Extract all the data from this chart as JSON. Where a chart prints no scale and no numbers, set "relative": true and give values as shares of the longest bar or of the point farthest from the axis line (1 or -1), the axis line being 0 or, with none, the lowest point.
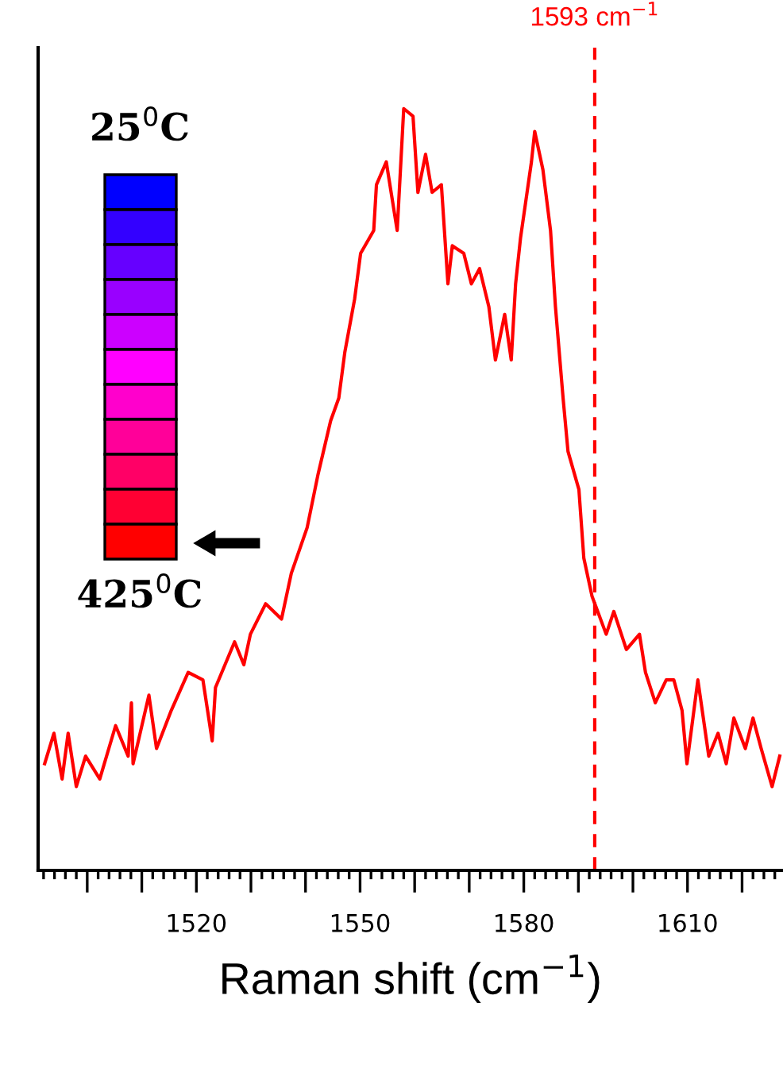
{
  "chart_data": {
    "type": "line",
    "relative": true,
    "xlabel": "Raman shift (cm$^{−1}$)",
    "annotations": [
      "25$^{0}$C",
      "425$^{0}$C"
    ],
    "xlim": [
      1491,
      1627.5
    ],
    "xticks": [
      {
        "value": 1492,
        "label": null
      },
      {
        "value": 1494,
        "label": null
      },
      {
        "value": 1496,
        "label": null
      },
      {
        "value": 1498,
        "label": null
      },
      {
        "value": 1500,
        "label": null
      },
      {
        "value": 1502,
        "label": null
      },
      {
        "value": 1504,
        "label": null
      },
      {
        "value": 1506,
        "label": null
      },
      {
        "value": 1508,
        "label": null
      },
      {
        "value": 1510,
        "label": null
      },
      {
        "value": 1512,
        "label": null
      },
      {
        "value": 1514,
        "label": null
      },
      {
        "value": 1516,
        "label": null
      },
      {
        "value": 1518,
        "label": null
      },
      1520,
      {
        "value": 1522,
        "label": null
      },
      {
        "value": 1524,
        "label": null
      },
      {
        "value": 1526,
        "label": null
      },
      {
        "value": 1528,
        "label": null
      },
      {
        "value": 1530,
        "label": null
      },
      {
        "value": 1532,
        "label": null
      },
      {
        "value": 1534,
        "label": null
      },
      {
        "value": 1536,
        "label": null
      },
      {
        "value": 1538,
        "label": null
      },
      {
        "value": 1540,
        "label": null
      },
      {
        "value": 1542,
        "label": null
      },
      {
        "value": 1544,
        "label": null
      },
      {
        "value": 1546,
        "label": null
      },
      {
        "value": 1548,
        "label": null
      },
      1550,
      {
        "value": 1552,
        "label": null
      },
      {
        "value": 1554,
        "label": null
      },
      {
        "value": 1556,
        "label": null
      },
      {
        "value": 1558,
        "label": null
      },
      {
        "value": 1560,
        "label": null
      },
      {
        "value": 1562,
        "label": null
      },
      {
        "value": 1564,
        "label": null
      },
      {
        "value": 1566,
        "label": null
      },
      {
        "value": 1568,
        "label": null
      },
      {
        "value": 1570,
        "label": null
      },
      {
        "value": 1572,
        "label": null
      },
      {
        "value": 1574,
        "label": null
      },
      {
        "value": 1576,
        "label": null
      },
      {
        "value": 1578,
        "label": null
      },
      1580,
      {
        "value": 1582,
        "label": null
      },
      {
        "value": 1584,
        "label": null
      },
      {
        "value": 1586,
        "label": null
      },
      {
        "value": 1588,
        "label": null
      },
      {
        "value": 1590,
        "label": null
      },
      {
        "value": 1592,
        "label": null
      },
      {
        "value": 1594,
        "label": null
      },
      {
        "value": 1596,
        "label": null
      },
      {
        "value": 1598,
        "label": null
      },
      {
        "value": 1600,
        "label": null
      },
      {
        "value": 1602,
        "label": null
      },
      {
        "value": 1604,
        "label": null
      },
      {
        "value": 1606,
        "label": null
      },
      {
        "value": 1608,
        "label": null
      },
      1610,
      {
        "value": 1612,
        "label": null
      },
      {
        "value": 1614,
        "label": null
      },
      {
        "value": 1616,
        "label": null
      },
      {
        "value": 1618,
        "label": null
      },
      {
        "value": 1620,
        "label": null
      },
      {
        "value": 1622,
        "label": null
      },
      {
        "value": 1624,
        "label": null
      },
      {
        "value": 1626,
        "label": null
      }
    ],
    "ref_lines": [
      {
        "axis": "x",
        "value": 1593,
        "label": "1593 cm$^{−1}$",
        "color": "#ff0000",
        "line_style": "dashed"
      }
    ],
    "series": [
      {
        "color": "#ff0000",
        "x": [
          1492.2,
          1493.9,
          1495.4,
          1496.5,
          1498.0,
          1499.7,
          1502.3,
          1505.2,
          1507.5,
          1508.1,
          1508.4,
          1511.3,
          1512.7,
          1515.4,
          1518.5,
          1521.2,
          1522.9,
          1523.5,
          1527.0,
          1528.7,
          1529.9,
          1532.7,
          1535.6,
          1537.4,
          1540.3,
          1542.3,
          1544.6,
          1546.1,
          1547.2,
          1549.0,
          1550.1,
          1552.5,
          1553.0,
          1554.8,
          1556.8,
          1558.0,
          1559.7,
          1560.6,
          1562.0,
          1563.2,
          1564.9,
          1566.1,
          1566.9,
          1569.0,
          1570.4,
          1571.9,
          1573.6,
          1574.8,
          1576.5,
          1577.7,
          1578.5,
          1579.4,
          1581.4,
          1582.0,
          1583.5,
          1584.9,
          1585.8,
          1587.2,
          1588.1,
          1590.1,
          1591.0,
          1592.5,
          1595.1,
          1596.5,
          1598.8,
          1601.2,
          1602.3,
          1604.1,
          1606.1,
          1607.5,
          1609.0,
          1609.9,
          1611.9,
          1613.9,
          1615.6,
          1617.1,
          1618.5,
          1620.6,
          1622.0,
          1623.5,
          1625.5,
          1626.9
        ],
        "values": [
          0.14,
          0.18,
          0.12,
          0.18,
          0.11,
          0.15,
          0.12,
          0.19,
          0.15,
          0.22,
          0.14,
          0.23,
          0.16,
          0.21,
          0.26,
          0.25,
          0.17,
          0.24,
          0.3,
          0.27,
          0.31,
          0.35,
          0.33,
          0.39,
          0.45,
          0.52,
          0.59,
          0.62,
          0.68,
          0.75,
          0.81,
          0.84,
          0.9,
          0.93,
          0.84,
          1.0,
          0.99,
          0.89,
          0.94,
          0.89,
          0.9,
          0.77,
          0.82,
          0.81,
          0.77,
          0.79,
          0.74,
          0.67,
          0.73,
          0.67,
          0.77,
          0.83,
          0.93,
          0.97,
          0.92,
          0.84,
          0.74,
          0.62,
          0.55,
          0.5,
          0.41,
          0.36,
          0.31,
          0.34,
          0.29,
          0.31,
          0.26,
          0.22,
          0.25,
          0.25,
          0.21,
          0.14,
          0.25,
          0.15,
          0.18,
          0.14,
          0.2,
          0.16,
          0.2,
          0.16,
          0.11,
          0.15
        ]
      }
    ]
  }
}
